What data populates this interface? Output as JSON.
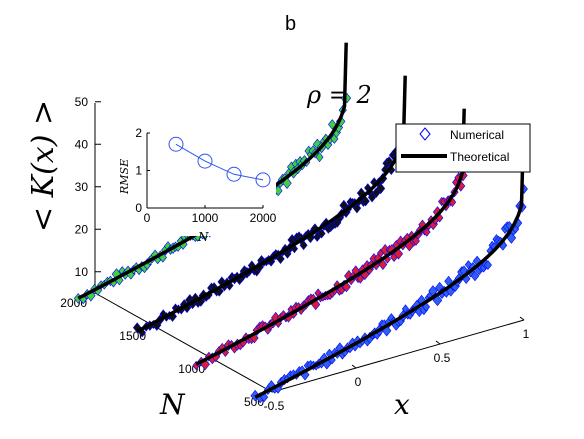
{
  "panel_label": "b",
  "chart_data": [
    {
      "type": "scatter",
      "title": "ρ = 2",
      "zlabel": "< K(x) >",
      "xlabel": "x",
      "ylabel": "N",
      "x_ticks": [
        "-0.5",
        "0",
        "0.5",
        "1"
      ],
      "y_ticks": [
        "500",
        "1000",
        "1500",
        "2000"
      ],
      "z_ticks": [
        "10",
        "20",
        "30",
        "40",
        "50"
      ],
      "xlim": [
        -0.5,
        1
      ],
      "ylim": [
        500,
        2000
      ],
      "zlim": [
        5,
        50
      ],
      "legend": {
        "position": "top-right",
        "entries": [
          "Numerical",
          "Theoretical"
        ]
      },
      "series": [
        {
          "N": 2000,
          "color": "#40d040",
          "x_range": [
            -0.6,
            1.0
          ],
          "z_range": [
            8,
            47
          ]
        },
        {
          "N": 1500,
          "color": "#101010",
          "x_range": [
            -0.6,
            1.0
          ],
          "z_range": [
            8,
            47
          ]
        },
        {
          "N": 1000,
          "color": "#d81d3c",
          "x_range": [
            -0.6,
            1.0
          ],
          "z_range": [
            8,
            47
          ]
        },
        {
          "N": 500,
          "color": "#2e5ff0",
          "x_range": [
            -0.6,
            1.0
          ],
          "z_range": [
            8,
            47
          ]
        }
      ],
      "curve_color": "#000000",
      "marker_edge_color": "#0000ff"
    },
    {
      "type": "line",
      "xlabel": "N",
      "ylabel": "RMSE",
      "x": [
        500,
        1000,
        1500,
        2000
      ],
      "y": [
        1.7,
        1.25,
        0.9,
        0.75
      ],
      "xlim": [
        0,
        2000
      ],
      "ylim": [
        0,
        2
      ],
      "x_ticks": [
        "0",
        "1000",
        "2000"
      ],
      "y_ticks": [
        "0",
        "1",
        "2"
      ],
      "line_color": "#3355ee"
    }
  ]
}
